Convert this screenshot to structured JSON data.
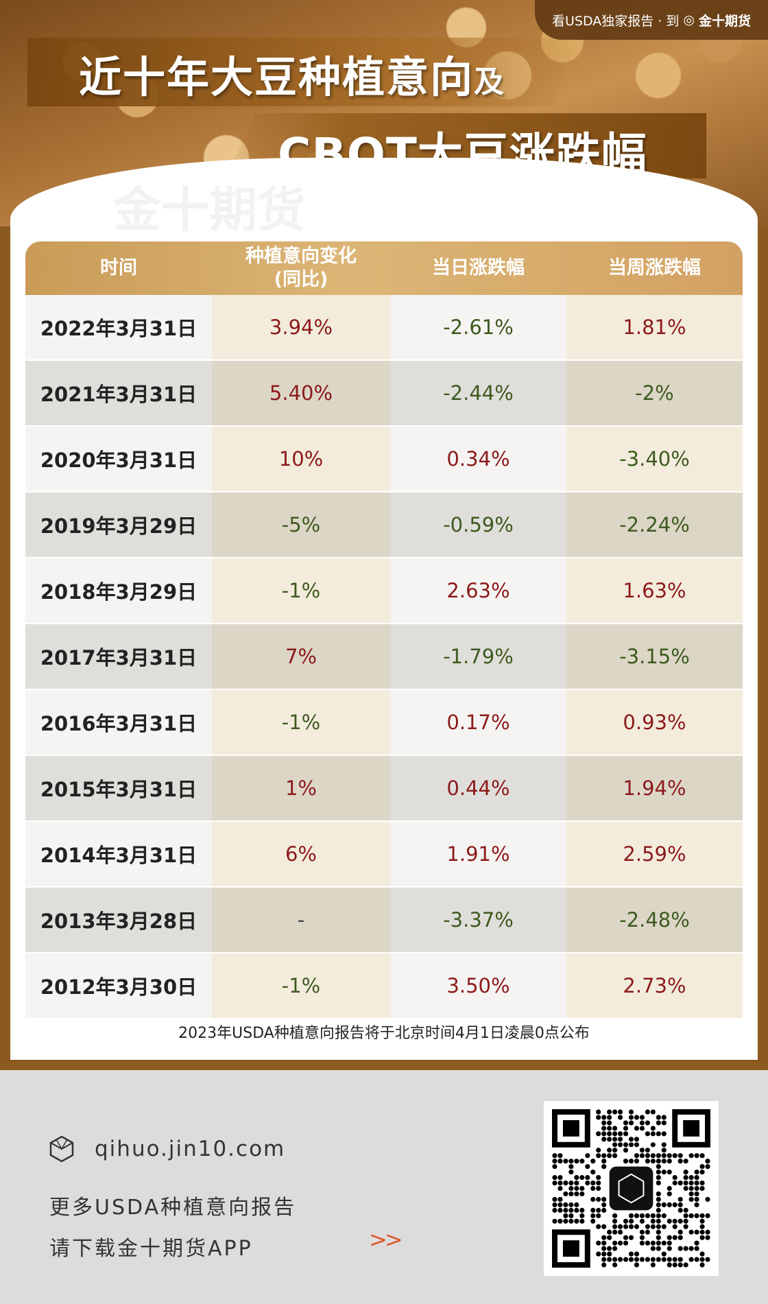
{
  "header": {
    "top_link": "看USDA独家报告 · 到",
    "top_brand": "金十期货",
    "title_line1": "近十年大豆种植意向",
    "title_line1_suffix": "及",
    "title_line2": "CBOT大豆涨跌幅"
  },
  "watermark_text": "金十期货",
  "table": {
    "headers": [
      "时间",
      "种植意向变化\n(同比)",
      "当日涨跌幅",
      "当周涨跌幅"
    ],
    "header_col1_line1": "种植意向变化",
    "header_col1_line2": "(同比)",
    "rows": [
      {
        "date": "2022年3月31日",
        "intent": "3.94%",
        "day": "-2.61%",
        "week": "1.81%"
      },
      {
        "date": "2021年3月31日",
        "intent": "5.40%",
        "day": "-2.44%",
        "week": "-2%"
      },
      {
        "date": "2020年3月31日",
        "intent": "10%",
        "day": "0.34%",
        "week": "-3.40%"
      },
      {
        "date": "2019年3月29日",
        "intent": "-5%",
        "day": "-0.59%",
        "week": "-2.24%"
      },
      {
        "date": "2018年3月29日",
        "intent": "-1%",
        "day": "2.63%",
        "week": "1.63%"
      },
      {
        "date": "2017年3月31日",
        "intent": "7%",
        "day": "-1.79%",
        "week": "-3.15%"
      },
      {
        "date": "2016年3月31日",
        "intent": "-1%",
        "day": "0.17%",
        "week": "0.93%"
      },
      {
        "date": "2015年3月31日",
        "intent": "1%",
        "day": "0.44%",
        "week": "1.94%"
      },
      {
        "date": "2014年3月31日",
        "intent": "6%",
        "day": "1.91%",
        "week": "2.59%"
      },
      {
        "date": "2013年3月28日",
        "intent": "-",
        "day": "-3.37%",
        "week": "-2.48%"
      },
      {
        "date": "2012年3月30日",
        "intent": "-1%",
        "day": "3.50%",
        "week": "2.73%"
      }
    ]
  },
  "note": "2023年USDA种植意向报告将于北京时间4月1日凌晨0点公布",
  "footer": {
    "site": "qihuo.jin10.com",
    "line2": "更多USDA种植意向报告",
    "line3": "请下载金十期货APP",
    "chevron": ">>"
  },
  "colors": {
    "positive": "#8b1a1a",
    "negative": "#3d5a1e",
    "header_gold": "#d2a263"
  }
}
